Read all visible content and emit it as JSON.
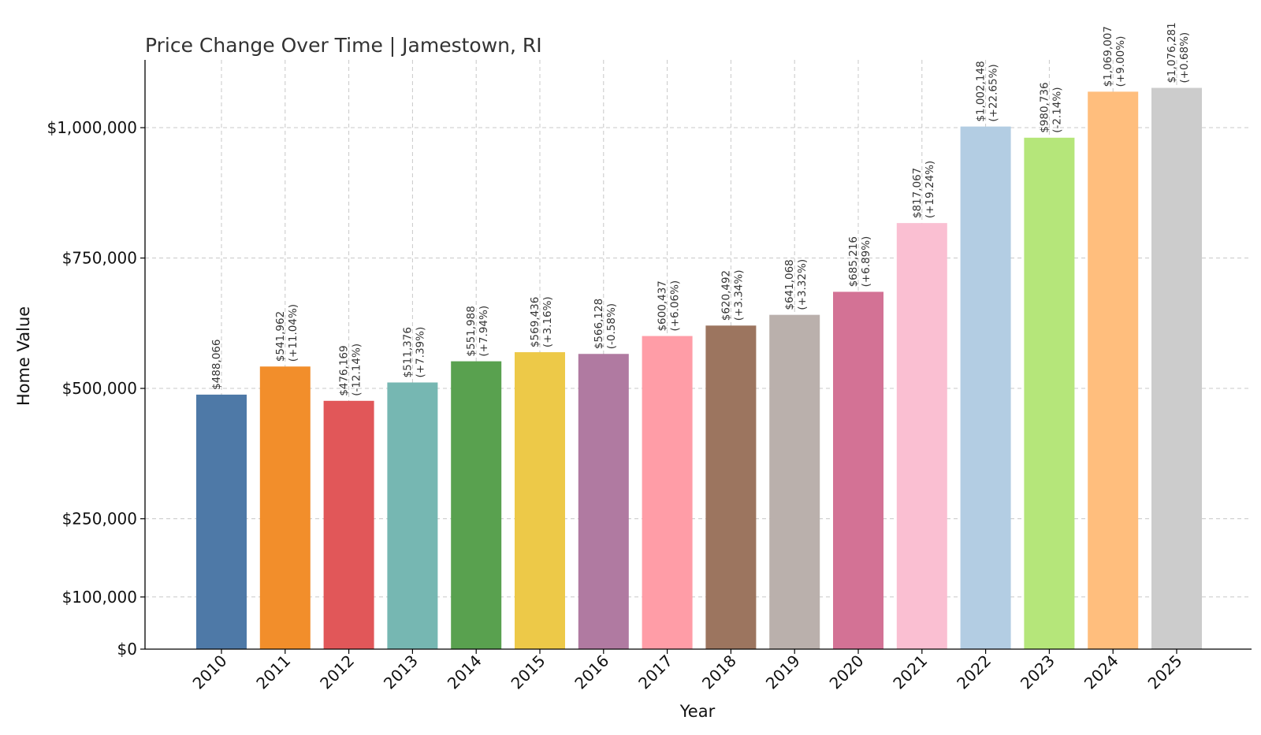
{
  "chart_data": {
    "type": "bar",
    "title": "Price Change Over Time | Jamestown, RI",
    "xlabel": "Year",
    "ylabel": "Home Value",
    "categories": [
      "2010",
      "2011",
      "2012",
      "2013",
      "2014",
      "2015",
      "2016",
      "2017",
      "2018",
      "2019",
      "2020",
      "2021",
      "2022",
      "2023",
      "2024",
      "2025"
    ],
    "values": [
      488066,
      541962,
      476169,
      511376,
      551988,
      569436,
      566128,
      600437,
      620492,
      641068,
      685216,
      817067,
      1002148,
      980736,
      1069007,
      1076281
    ],
    "value_labels": [
      "$488,066",
      "$541,962",
      "$476,169",
      "$511,376",
      "$551,988",
      "$569,436",
      "$566,128",
      "$600,437",
      "$620,492",
      "$641,068",
      "$685,216",
      "$817,067",
      "$1,002,148",
      "$980,736",
      "$1,069,007",
      "$1,076,281"
    ],
    "change_labels": [
      "",
      "(+11.04%)",
      "(-12.14%)",
      "(+7.39%)",
      "(+7.94%)",
      "(+3.16%)",
      "(-0.58%)",
      "(+6.06%)",
      "(+3.34%)",
      "(+3.32%)",
      "(+6.89%)",
      "(+19.24%)",
      "(+22.65%)",
      "(-2.14%)",
      "(+9.00%)",
      "(+0.68%)"
    ],
    "colors": [
      "#4e79a7",
      "#f28e2b",
      "#e15759",
      "#76b7b2",
      "#59a14f",
      "#edc948",
      "#b07aa1",
      "#ff9da7",
      "#9c755f",
      "#bab0ac",
      "#d37295",
      "#fabfd2",
      "#b3cde3",
      "#b5e67a",
      "#ffbe7d",
      "#cccccc"
    ],
    "yticks": [
      0,
      100000,
      250000,
      500000,
      750000,
      1000000
    ],
    "ytick_labels": [
      "$0",
      "$100,000",
      "$250,000",
      "$500,000",
      "$750,000",
      "$1,000,000"
    ],
    "ylim": [
      0,
      1130000
    ],
    "grid": true,
    "legend": "none"
  }
}
